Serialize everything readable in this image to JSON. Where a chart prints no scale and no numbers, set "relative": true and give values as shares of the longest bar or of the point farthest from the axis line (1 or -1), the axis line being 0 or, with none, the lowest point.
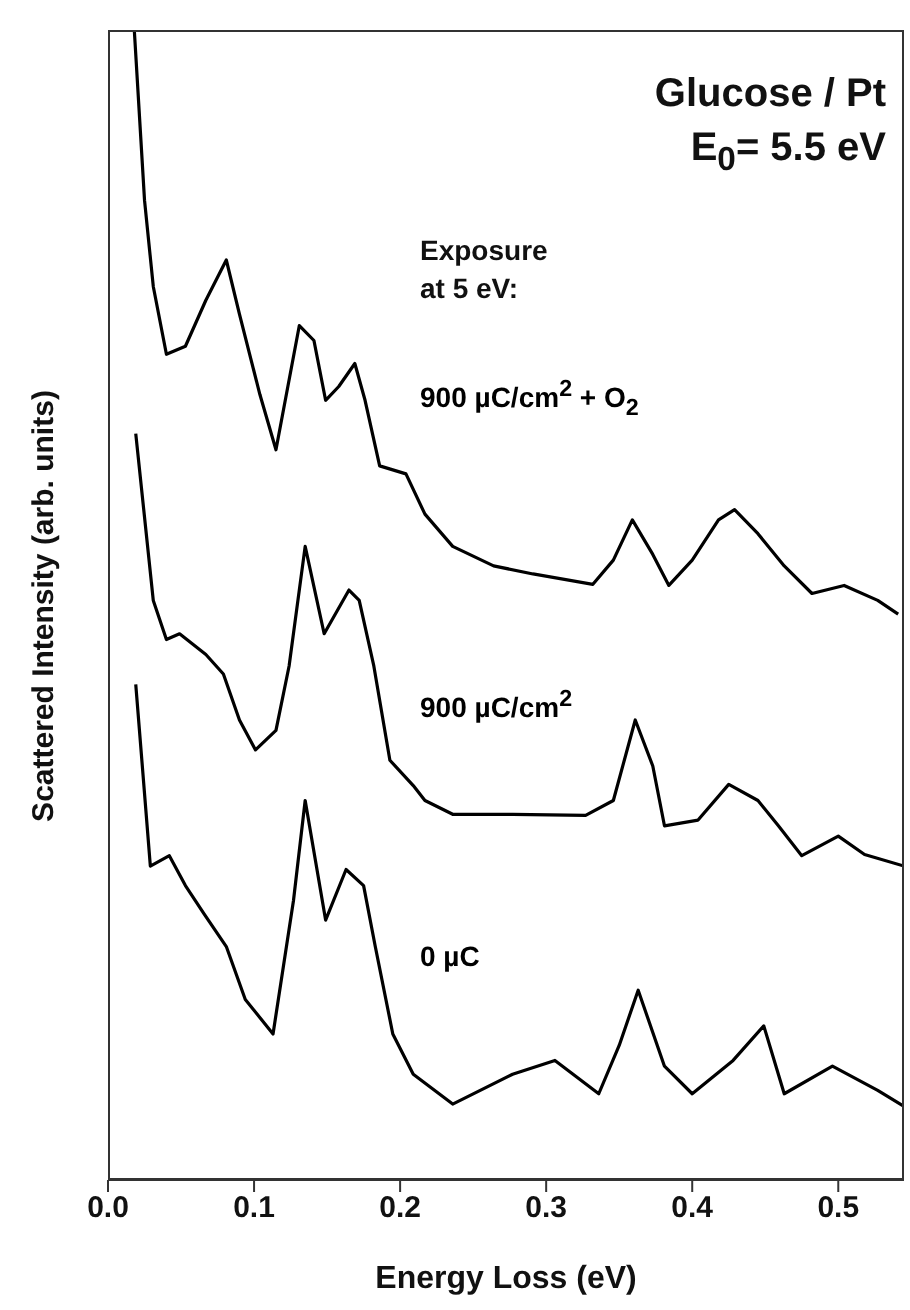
{
  "chart_data": {
    "type": "line",
    "title": "Glucose / Pt",
    "annotations": [
      "E$_{0}$= 5.5 eV",
      "Exposure at 5 eV:"
    ],
    "xlabel": "Energy Loss (eV)",
    "ylabel": "Scattered Intensity (arb. units)",
    "relative": true,
    "xlim": [
      0,
      0.545
    ],
    "xticks": [
      {
        "value": 0,
        "label": "0.0"
      },
      0.1,
      0.2,
      0.3,
      0.4,
      0.5
    ],
    "marker": "none",
    "line_style": "solid",
    "series": [
      {
        "name": "900 µC/cm$^{2}$ + O$_{2}$",
        "color": "#000000",
        "x": [
          0.018,
          0.025,
          0.031,
          0.04,
          0.053,
          0.067,
          0.081,
          0.09,
          0.104,
          0.115,
          0.131,
          0.141,
          0.149,
          0.158,
          0.169,
          0.176,
          0.186,
          0.204,
          0.217,
          0.236,
          0.264,
          0.291,
          0.332,
          0.346,
          0.359,
          0.373,
          0.384,
          0.4,
          0.418,
          0.429,
          0.445,
          0.463,
          0.482,
          0.504,
          0.527,
          0.541
        ],
        "values": [
          1,
          0.852,
          0.777,
          0.718,
          0.725,
          0.765,
          0.8,
          0.753,
          0.683,
          0.635,
          0.743,
          0.73,
          0.678,
          0.69,
          0.71,
          0.678,
          0.621,
          0.614,
          0.579,
          0.551,
          0.534,
          0.527,
          0.518,
          0.539,
          0.574,
          0.544,
          0.517,
          0.539,
          0.574,
          0.583,
          0.562,
          0.534,
          0.51,
          0.517,
          0.504,
          0.492
        ]
      },
      {
        "name": "900 µC/cm$^{2}$",
        "color": "#000000",
        "x": [
          0.019,
          0.031,
          0.04,
          0.049,
          0.067,
          0.079,
          0.09,
          0.101,
          0.115,
          0.124,
          0.135,
          0.148,
          0.165,
          0.172,
          0.182,
          0.193,
          0.209,
          0.217,
          0.236,
          0.277,
          0.327,
          0.346,
          0.361,
          0.373,
          0.381,
          0.404,
          0.425,
          0.445,
          0.459,
          0.475,
          0.5,
          0.518,
          0.545
        ],
        "values": [
          0.649,
          0.504,
          0.47,
          0.475,
          0.457,
          0.44,
          0.4,
          0.374,
          0.391,
          0.447,
          0.551,
          0.475,
          0.513,
          0.504,
          0.447,
          0.365,
          0.343,
          0.33,
          0.318,
          0.318,
          0.317,
          0.33,
          0.4,
          0.36,
          0.308,
          0.313,
          0.344,
          0.33,
          0.308,
          0.282,
          0.299,
          0.283,
          0.273
        ]
      },
      {
        "name": "0 µC",
        "color": "#000000",
        "x": [
          0.019,
          0.029,
          0.042,
          0.053,
          0.066,
          0.081,
          0.094,
          0.113,
          0.127,
          0.135,
          0.149,
          0.163,
          0.175,
          0.183,
          0.195,
          0.209,
          0.236,
          0.277,
          0.306,
          0.336,
          0.35,
          0.363,
          0.381,
          0.4,
          0.428,
          0.449,
          0.463,
          0.496,
          0.527,
          0.545
        ],
        "values": [
          0.431,
          0.273,
          0.282,
          0.256,
          0.231,
          0.203,
          0.157,
          0.127,
          0.243,
          0.33,
          0.226,
          0.27,
          0.256,
          0.203,
          0.127,
          0.092,
          0.066,
          0.092,
          0.104,
          0.075,
          0.117,
          0.165,
          0.099,
          0.075,
          0.104,
          0.134,
          0.075,
          0.099,
          0.078,
          0.064
        ]
      }
    ]
  }
}
